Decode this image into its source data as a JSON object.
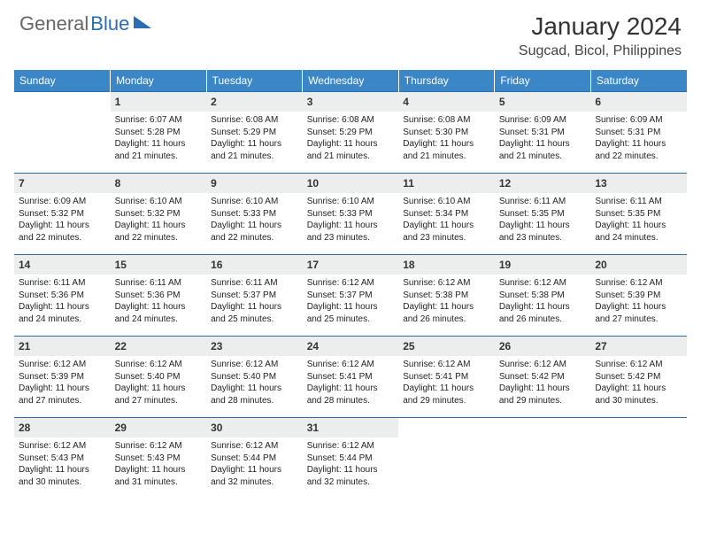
{
  "brand": {
    "part1": "General",
    "part2": "Blue"
  },
  "title": "January 2024",
  "location": "Sugcad, Bicol, Philippines",
  "colors": {
    "header_bg": "#3b86c7",
    "header_text": "#ffffff",
    "daynum_bg": "#eceeee",
    "row_border": "#2a6db0",
    "brand_gray": "#666666",
    "brand_blue": "#2a6db0"
  },
  "weekdays": [
    "Sunday",
    "Monday",
    "Tuesday",
    "Wednesday",
    "Thursday",
    "Friday",
    "Saturday"
  ],
  "weeks": [
    [
      {
        "n": "",
        "sunrise": "",
        "sunset": "",
        "daylight1": "",
        "daylight2": ""
      },
      {
        "n": "1",
        "sunrise": "Sunrise: 6:07 AM",
        "sunset": "Sunset: 5:28 PM",
        "daylight1": "Daylight: 11 hours",
        "daylight2": "and 21 minutes."
      },
      {
        "n": "2",
        "sunrise": "Sunrise: 6:08 AM",
        "sunset": "Sunset: 5:29 PM",
        "daylight1": "Daylight: 11 hours",
        "daylight2": "and 21 minutes."
      },
      {
        "n": "3",
        "sunrise": "Sunrise: 6:08 AM",
        "sunset": "Sunset: 5:29 PM",
        "daylight1": "Daylight: 11 hours",
        "daylight2": "and 21 minutes."
      },
      {
        "n": "4",
        "sunrise": "Sunrise: 6:08 AM",
        "sunset": "Sunset: 5:30 PM",
        "daylight1": "Daylight: 11 hours",
        "daylight2": "and 21 minutes."
      },
      {
        "n": "5",
        "sunrise": "Sunrise: 6:09 AM",
        "sunset": "Sunset: 5:31 PM",
        "daylight1": "Daylight: 11 hours",
        "daylight2": "and 21 minutes."
      },
      {
        "n": "6",
        "sunrise": "Sunrise: 6:09 AM",
        "sunset": "Sunset: 5:31 PM",
        "daylight1": "Daylight: 11 hours",
        "daylight2": "and 22 minutes."
      }
    ],
    [
      {
        "n": "7",
        "sunrise": "Sunrise: 6:09 AM",
        "sunset": "Sunset: 5:32 PM",
        "daylight1": "Daylight: 11 hours",
        "daylight2": "and 22 minutes."
      },
      {
        "n": "8",
        "sunrise": "Sunrise: 6:10 AM",
        "sunset": "Sunset: 5:32 PM",
        "daylight1": "Daylight: 11 hours",
        "daylight2": "and 22 minutes."
      },
      {
        "n": "9",
        "sunrise": "Sunrise: 6:10 AM",
        "sunset": "Sunset: 5:33 PM",
        "daylight1": "Daylight: 11 hours",
        "daylight2": "and 22 minutes."
      },
      {
        "n": "10",
        "sunrise": "Sunrise: 6:10 AM",
        "sunset": "Sunset: 5:33 PM",
        "daylight1": "Daylight: 11 hours",
        "daylight2": "and 23 minutes."
      },
      {
        "n": "11",
        "sunrise": "Sunrise: 6:10 AM",
        "sunset": "Sunset: 5:34 PM",
        "daylight1": "Daylight: 11 hours",
        "daylight2": "and 23 minutes."
      },
      {
        "n": "12",
        "sunrise": "Sunrise: 6:11 AM",
        "sunset": "Sunset: 5:35 PM",
        "daylight1": "Daylight: 11 hours",
        "daylight2": "and 23 minutes."
      },
      {
        "n": "13",
        "sunrise": "Sunrise: 6:11 AM",
        "sunset": "Sunset: 5:35 PM",
        "daylight1": "Daylight: 11 hours",
        "daylight2": "and 24 minutes."
      }
    ],
    [
      {
        "n": "14",
        "sunrise": "Sunrise: 6:11 AM",
        "sunset": "Sunset: 5:36 PM",
        "daylight1": "Daylight: 11 hours",
        "daylight2": "and 24 minutes."
      },
      {
        "n": "15",
        "sunrise": "Sunrise: 6:11 AM",
        "sunset": "Sunset: 5:36 PM",
        "daylight1": "Daylight: 11 hours",
        "daylight2": "and 24 minutes."
      },
      {
        "n": "16",
        "sunrise": "Sunrise: 6:11 AM",
        "sunset": "Sunset: 5:37 PM",
        "daylight1": "Daylight: 11 hours",
        "daylight2": "and 25 minutes."
      },
      {
        "n": "17",
        "sunrise": "Sunrise: 6:12 AM",
        "sunset": "Sunset: 5:37 PM",
        "daylight1": "Daylight: 11 hours",
        "daylight2": "and 25 minutes."
      },
      {
        "n": "18",
        "sunrise": "Sunrise: 6:12 AM",
        "sunset": "Sunset: 5:38 PM",
        "daylight1": "Daylight: 11 hours",
        "daylight2": "and 26 minutes."
      },
      {
        "n": "19",
        "sunrise": "Sunrise: 6:12 AM",
        "sunset": "Sunset: 5:38 PM",
        "daylight1": "Daylight: 11 hours",
        "daylight2": "and 26 minutes."
      },
      {
        "n": "20",
        "sunrise": "Sunrise: 6:12 AM",
        "sunset": "Sunset: 5:39 PM",
        "daylight1": "Daylight: 11 hours",
        "daylight2": "and 27 minutes."
      }
    ],
    [
      {
        "n": "21",
        "sunrise": "Sunrise: 6:12 AM",
        "sunset": "Sunset: 5:39 PM",
        "daylight1": "Daylight: 11 hours",
        "daylight2": "and 27 minutes."
      },
      {
        "n": "22",
        "sunrise": "Sunrise: 6:12 AM",
        "sunset": "Sunset: 5:40 PM",
        "daylight1": "Daylight: 11 hours",
        "daylight2": "and 27 minutes."
      },
      {
        "n": "23",
        "sunrise": "Sunrise: 6:12 AM",
        "sunset": "Sunset: 5:40 PM",
        "daylight1": "Daylight: 11 hours",
        "daylight2": "and 28 minutes."
      },
      {
        "n": "24",
        "sunrise": "Sunrise: 6:12 AM",
        "sunset": "Sunset: 5:41 PM",
        "daylight1": "Daylight: 11 hours",
        "daylight2": "and 28 minutes."
      },
      {
        "n": "25",
        "sunrise": "Sunrise: 6:12 AM",
        "sunset": "Sunset: 5:41 PM",
        "daylight1": "Daylight: 11 hours",
        "daylight2": "and 29 minutes."
      },
      {
        "n": "26",
        "sunrise": "Sunrise: 6:12 AM",
        "sunset": "Sunset: 5:42 PM",
        "daylight1": "Daylight: 11 hours",
        "daylight2": "and 29 minutes."
      },
      {
        "n": "27",
        "sunrise": "Sunrise: 6:12 AM",
        "sunset": "Sunset: 5:42 PM",
        "daylight1": "Daylight: 11 hours",
        "daylight2": "and 30 minutes."
      }
    ],
    [
      {
        "n": "28",
        "sunrise": "Sunrise: 6:12 AM",
        "sunset": "Sunset: 5:43 PM",
        "daylight1": "Daylight: 11 hours",
        "daylight2": "and 30 minutes."
      },
      {
        "n": "29",
        "sunrise": "Sunrise: 6:12 AM",
        "sunset": "Sunset: 5:43 PM",
        "daylight1": "Daylight: 11 hours",
        "daylight2": "and 31 minutes."
      },
      {
        "n": "30",
        "sunrise": "Sunrise: 6:12 AM",
        "sunset": "Sunset: 5:44 PM",
        "daylight1": "Daylight: 11 hours",
        "daylight2": "and 32 minutes."
      },
      {
        "n": "31",
        "sunrise": "Sunrise: 6:12 AM",
        "sunset": "Sunset: 5:44 PM",
        "daylight1": "Daylight: 11 hours",
        "daylight2": "and 32 minutes."
      },
      {
        "n": "",
        "sunrise": "",
        "sunset": "",
        "daylight1": "",
        "daylight2": ""
      },
      {
        "n": "",
        "sunrise": "",
        "sunset": "",
        "daylight1": "",
        "daylight2": ""
      },
      {
        "n": "",
        "sunrise": "",
        "sunset": "",
        "daylight1": "",
        "daylight2": ""
      }
    ]
  ]
}
